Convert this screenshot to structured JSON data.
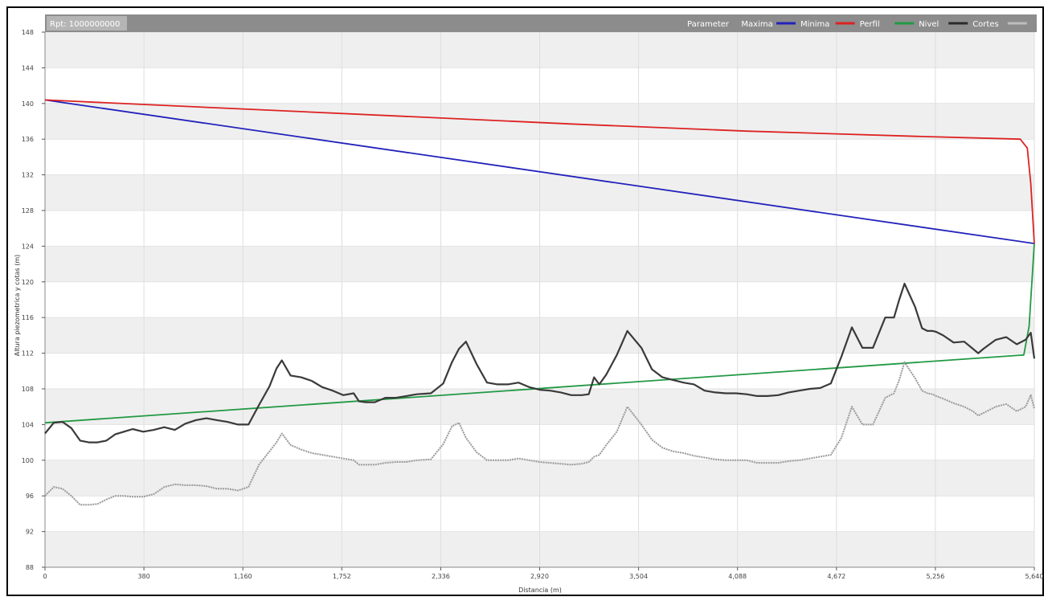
{
  "header": {
    "title": "Rpt: 1000000000",
    "legend": [
      "Parameter",
      "Maxima",
      "Minima",
      "Perfil",
      "Nivel",
      "Cortes"
    ]
  },
  "chart_data": {
    "type": "line",
    "title": "Rpt: 1000000000",
    "xlabel": "Distancia (m)",
    "ylabel": "Altura piezometrica y cotas (m)",
    "xlim": [
      0,
      5640
    ],
    "ylim": [
      88,
      148
    ],
    "x_ticks": [
      "0",
      "380",
      "1,160",
      "1,752",
      "2,336",
      "2,920",
      "3,504",
      "4,088",
      "4,672",
      "5,256",
      "5,640"
    ],
    "y_ticks": [
      "88",
      "92",
      "96",
      "100",
      "104",
      "108",
      "112",
      "116",
      "120",
      "124",
      "128",
      "132",
      "136",
      "140",
      "144",
      "148"
    ],
    "grid": true,
    "legend_position": "top-right",
    "series": [
      {
        "name": "Maxima",
        "color": "#2222bb",
        "x": [
          0,
          5640
        ],
        "y": [
          140.4,
          124.3
        ]
      },
      {
        "name": "Minima",
        "color": "#dd2222",
        "x": [
          0,
          1000,
          2000,
          3000,
          4000,
          5000,
          5560,
          5600,
          5620,
          5640
        ],
        "y": [
          140.4,
          139.5,
          138.6,
          137.7,
          136.9,
          136.3,
          136.0,
          135.0,
          131.0,
          124.3
        ]
      },
      {
        "name": "Perfil",
        "color": "#229944",
        "x": [
          0,
          5580,
          5610,
          5640
        ],
        "y": [
          104.2,
          111.8,
          115.0,
          124.3
        ]
      },
      {
        "name": "Nivel",
        "color": "#3a3a3a",
        "x": [
          0,
          50,
          100,
          150,
          200,
          250,
          300,
          350,
          400,
          450,
          500,
          560,
          620,
          680,
          740,
          800,
          860,
          920,
          980,
          1040,
          1100,
          1160,
          1220,
          1280,
          1320,
          1350,
          1400,
          1460,
          1520,
          1580,
          1640,
          1700,
          1760,
          1790,
          1830,
          1880,
          1940,
          2000,
          2060,
          2120,
          2200,
          2270,
          2320,
          2360,
          2400,
          2460,
          2520,
          2580,
          2640,
          2700,
          2760,
          2820,
          2880,
          2940,
          3000,
          3060,
          3100,
          3130,
          3160,
          3200,
          3260,
          3320,
          3400,
          3460,
          3520,
          3580,
          3640,
          3700,
          3760,
          3820,
          3880,
          3940,
          4000,
          4060,
          4120,
          4180,
          4240,
          4300,
          4360,
          4420,
          4480,
          4540,
          4600,
          4660,
          4720,
          4790,
          4840,
          4870,
          4900,
          4960,
          5000,
          5030,
          5060,
          5080,
          5120,
          5180,
          5240,
          5290,
          5320,
          5350,
          5420,
          5480,
          5540,
          5590,
          5620,
          5640
        ],
        "y": [
          103.0,
          104.2,
          104.3,
          103.6,
          102.2,
          102.0,
          102.0,
          102.2,
          102.9,
          103.2,
          103.5,
          103.2,
          103.4,
          103.7,
          103.4,
          104.1,
          104.5,
          104.7,
          104.5,
          104.3,
          104.0,
          104.0,
          106.2,
          108.3,
          110.3,
          111.2,
          109.5,
          109.3,
          108.9,
          108.2,
          107.8,
          107.3,
          107.5,
          106.6,
          106.5,
          106.5,
          107.0,
          107.0,
          107.2,
          107.4,
          107.5,
          108.6,
          111.0,
          112.5,
          113.3,
          110.8,
          108.7,
          108.5,
          108.5,
          108.7,
          108.2,
          107.9,
          107.8,
          107.6,
          107.3,
          107.3,
          107.4,
          109.3,
          108.5,
          109.6,
          111.8,
          114.5,
          112.6,
          110.2,
          109.3,
          109.0,
          108.7,
          108.5,
          107.8,
          107.6,
          107.5,
          107.5,
          107.4,
          107.2,
          107.2,
          107.3,
          107.6,
          107.8,
          108.0,
          108.1,
          108.6,
          111.6,
          114.9,
          112.6,
          112.6,
          116.0,
          116.0,
          118.0,
          119.8,
          117.2,
          114.8,
          114.5,
          114.5,
          114.4,
          114.0,
          113.2,
          113.3,
          112.5,
          112.0,
          112.5,
          113.5,
          113.8,
          113.0,
          113.5,
          114.3,
          111.4
        ]
      },
      {
        "name": "Cortes",
        "color": "#9a9a9a",
        "x": [
          0,
          50,
          100,
          150,
          200,
          250,
          300,
          350,
          400,
          450,
          500,
          560,
          620,
          680,
          740,
          800,
          860,
          920,
          980,
          1040,
          1100,
          1160,
          1220,
          1280,
          1320,
          1350,
          1400,
          1460,
          1520,
          1580,
          1640,
          1700,
          1760,
          1790,
          1830,
          1880,
          1940,
          2000,
          2060,
          2120,
          2200,
          2270,
          2320,
          2360,
          2400,
          2460,
          2520,
          2580,
          2640,
          2700,
          2760,
          2820,
          2880,
          2940,
          3000,
          3060,
          3100,
          3130,
          3160,
          3200,
          3260,
          3320,
          3400,
          3460,
          3520,
          3580,
          3640,
          3700,
          3760,
          3820,
          3880,
          3940,
          4000,
          4060,
          4120,
          4180,
          4240,
          4300,
          4360,
          4420,
          4480,
          4540,
          4600,
          4660,
          4720,
          4790,
          4840,
          4870,
          4900,
          4960,
          5000,
          5030,
          5060,
          5080,
          5120,
          5180,
          5240,
          5290,
          5320,
          5350,
          5420,
          5480,
          5540,
          5590,
          5620,
          5640
        ],
        "y": [
          96.0,
          97.0,
          96.8,
          96.0,
          95.0,
          95.0,
          95.1,
          95.6,
          96.0,
          96.0,
          95.9,
          95.9,
          96.2,
          97.0,
          97.3,
          97.2,
          97.2,
          97.1,
          96.8,
          96.8,
          96.6,
          97.0,
          99.5,
          101.0,
          102.0,
          103.0,
          101.7,
          101.2,
          100.8,
          100.6,
          100.4,
          100.2,
          100.0,
          99.5,
          99.5,
          99.5,
          99.7,
          99.8,
          99.8,
          100.0,
          100.1,
          101.8,
          103.8,
          104.2,
          102.5,
          100.9,
          100.0,
          100.0,
          100.0,
          100.2,
          100.0,
          99.8,
          99.7,
          99.6,
          99.5,
          99.6,
          99.8,
          100.4,
          100.6,
          101.7,
          103.2,
          106.0,
          104.0,
          102.3,
          101.4,
          101.0,
          100.8,
          100.5,
          100.3,
          100.1,
          100.0,
          100.0,
          100.0,
          99.7,
          99.7,
          99.7,
          99.9,
          100.0,
          100.2,
          100.4,
          100.6,
          102.5,
          106.0,
          104.0,
          104.0,
          107.0,
          107.5,
          109.0,
          111.0,
          109.2,
          107.8,
          107.5,
          107.4,
          107.2,
          106.9,
          106.4,
          106.0,
          105.5,
          105.0,
          105.3,
          106.0,
          106.3,
          105.5,
          106.0,
          107.3,
          105.8
        ]
      }
    ]
  }
}
